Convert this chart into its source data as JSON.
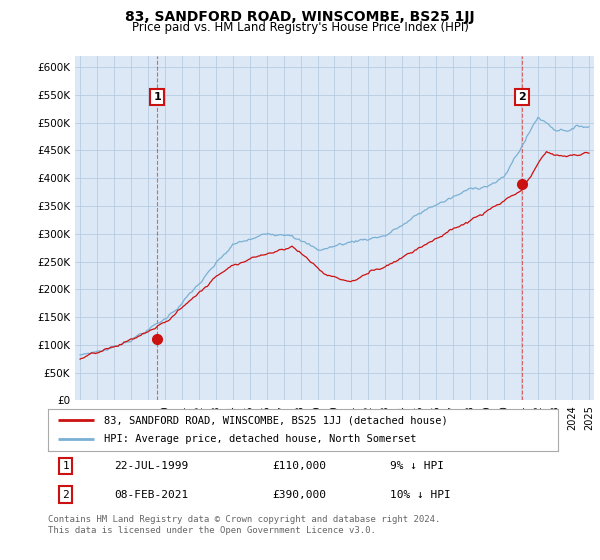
{
  "title": "83, SANDFORD ROAD, WINSCOMBE, BS25 1JJ",
  "subtitle": "Price paid vs. HM Land Registry's House Price Index (HPI)",
  "ylabel_ticks": [
    "£0",
    "£50K",
    "£100K",
    "£150K",
    "£200K",
    "£250K",
    "£300K",
    "£350K",
    "£400K",
    "£450K",
    "£500K",
    "£550K",
    "£600K"
  ],
  "ytick_values": [
    0,
    50000,
    100000,
    150000,
    200000,
    250000,
    300000,
    350000,
    400000,
    450000,
    500000,
    550000,
    600000
  ],
  "ylim": [
    0,
    620000
  ],
  "xlim_start": 1994.7,
  "xlim_end": 2025.3,
  "hpi_color": "#7ab0d4",
  "price_color": "#cc1111",
  "plot_bg_color": "#dce8f5",
  "transaction_1": {
    "date": 1999.55,
    "price": 110000,
    "label": "1",
    "note": "22-JUL-1999",
    "amount": "£110,000",
    "pct": "9% ↓ HPI"
  },
  "transaction_2": {
    "date": 2021.08,
    "price": 390000,
    "label": "2",
    "note": "08-FEB-2021",
    "amount": "£390,000",
    "pct": "10% ↓ HPI"
  },
  "legend_line1": "83, SANDFORD ROAD, WINSCOMBE, BS25 1JJ (detached house)",
  "legend_line2": "HPI: Average price, detached house, North Somerset",
  "footer": "Contains HM Land Registry data © Crown copyright and database right 2024.\nThis data is licensed under the Open Government Licence v3.0.",
  "marker_size": 7,
  "background_color": "#ffffff",
  "grid_color": "#b0c8e0"
}
